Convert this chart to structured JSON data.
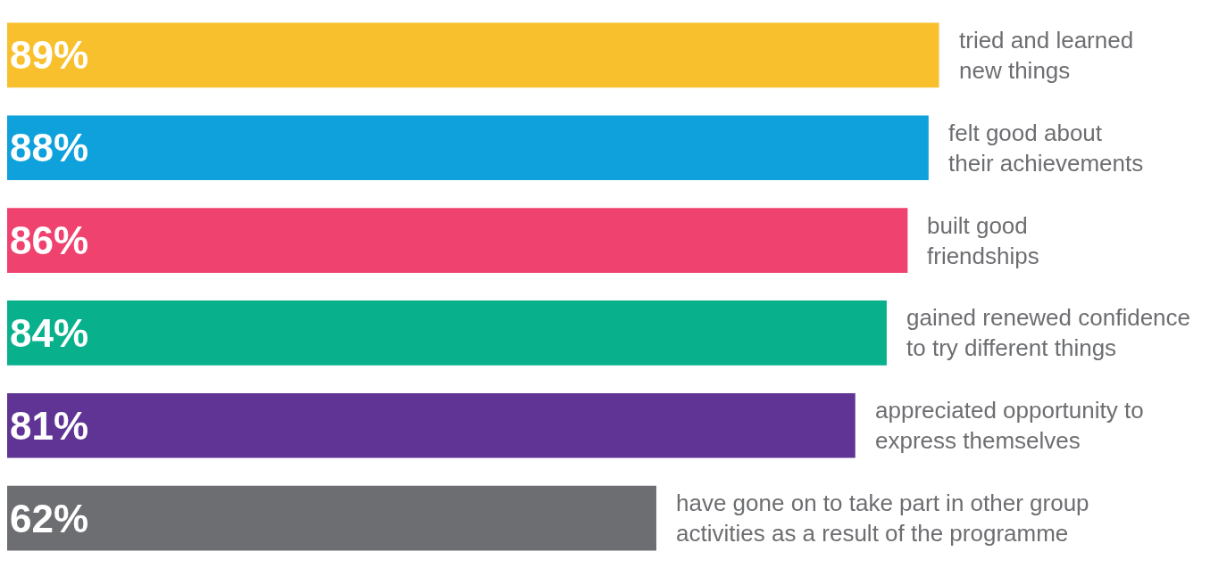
{
  "chart_data": {
    "type": "bar",
    "orientation": "horizontal",
    "categories": [
      "tried and learned\nnew things",
      "felt good about\ntheir achievements",
      "built good\nfriendships",
      "gained renewed confidence\nto try different things",
      "appreciated opportunity to\nexpress themselves",
      "have gone on to take part in other group\nactivities as a result of the programme"
    ],
    "values": [
      89,
      88,
      86,
      84,
      81,
      62
    ],
    "colors": [
      "#f8c02c",
      "#0ea1dc",
      "#ef426f",
      "#08b08b",
      "#5f3494",
      "#6d6e71"
    ],
    "value_labels": [
      "89%",
      "88%",
      "86%",
      "84%",
      "81%",
      "62%"
    ],
    "xlim": [
      0,
      116.5
    ],
    "tick_labels": false,
    "legend": false
  }
}
